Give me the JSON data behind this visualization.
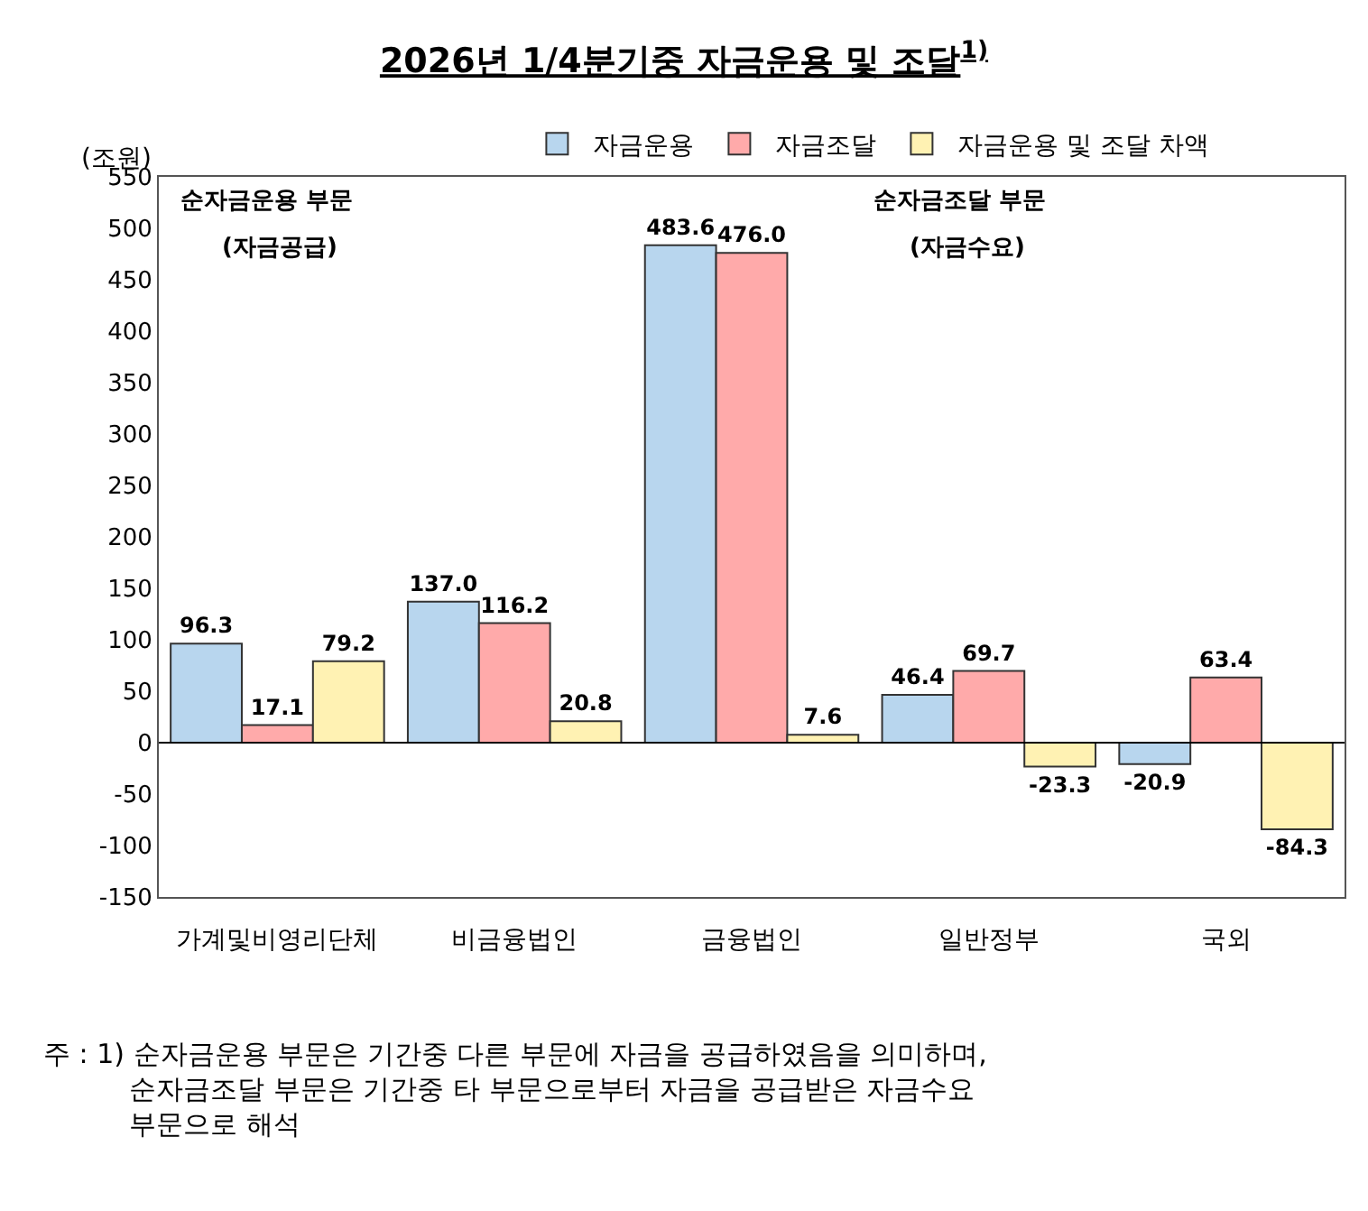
{
  "chart_data": {
    "type": "bar",
    "title": "2026년 1/4분기중 자금운용 및 조달$^{1)}$",
    "ylabel": "(조원)",
    "categories": [
      "가계및비영리단체",
      "비금융법인",
      "금융법인",
      "일반정부",
      "국외"
    ],
    "series": [
      {
        "name": "자금운용",
        "color": "#b8d6ee",
        "values": [
          96.3,
          137.0,
          483.6,
          46.4,
          -20.9
        ],
        "value_labels": [
          "96.3",
          "137.0",
          "483.6",
          "46.4",
          "-20.9"
        ]
      },
      {
        "name": "자금조달",
        "color": "#ffaaaa",
        "values": [
          17.1,
          116.2,
          476.0,
          69.7,
          63.4
        ],
        "value_labels": [
          "17.1",
          "116.2",
          "476.0",
          "69.7",
          "63.4"
        ]
      },
      {
        "name": "자금운용 및 조달 차액",
        "color": "#fff2b3",
        "values": [
          79.2,
          20.8,
          7.6,
          -23.3,
          -84.3
        ],
        "value_labels": [
          "79.2",
          "20.8",
          "7.6",
          "-23.3",
          "-84.3"
        ]
      }
    ],
    "ylim": [
      -150,
      550
    ],
    "yticks": [
      -150,
      -100,
      -50,
      0,
      50,
      100,
      150,
      200,
      250,
      300,
      350,
      400,
      450,
      500,
      550
    ],
    "legend": "top",
    "ref_lines": [
      {
        "axis": "y",
        "value": 0,
        "color": "#000000"
      }
    ],
    "annotations": [
      "순자금운용 부문",
      "(자금공급)",
      "순자금조달 부문",
      "(자금수요)",
      "주 : 1) 순자금운용 부문은 기간중 다른 부문에 자금을 공급하였음을 의미하며,\n순자금조달 부문은 기간중 타 부문으로부터 자금을 공급받은 자금수요\n부문으로 해석"
    ]
  }
}
